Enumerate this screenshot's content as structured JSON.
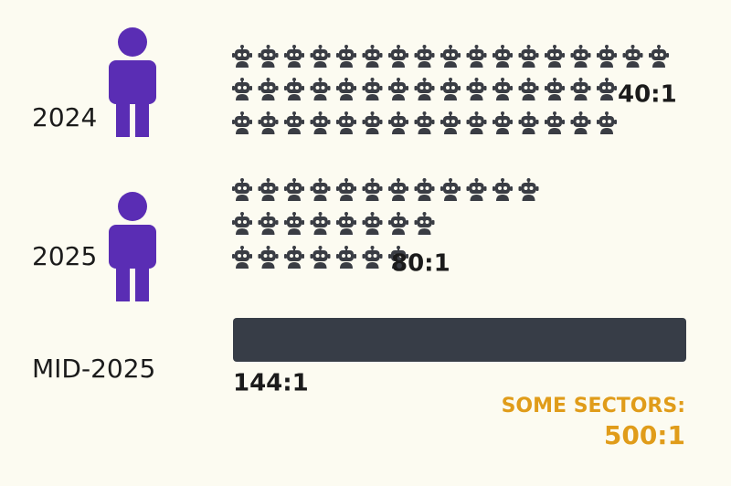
{
  "rows": [
    {
      "label": "2024",
      "ratio": "40:1"
    },
    {
      "label": "2025",
      "ratio": "80:1"
    },
    {
      "label": "MID-2025",
      "ratio": "144:1"
    }
  ],
  "callout": {
    "label": "SOME SECTORS:",
    "ratio": "500:1"
  }
}
